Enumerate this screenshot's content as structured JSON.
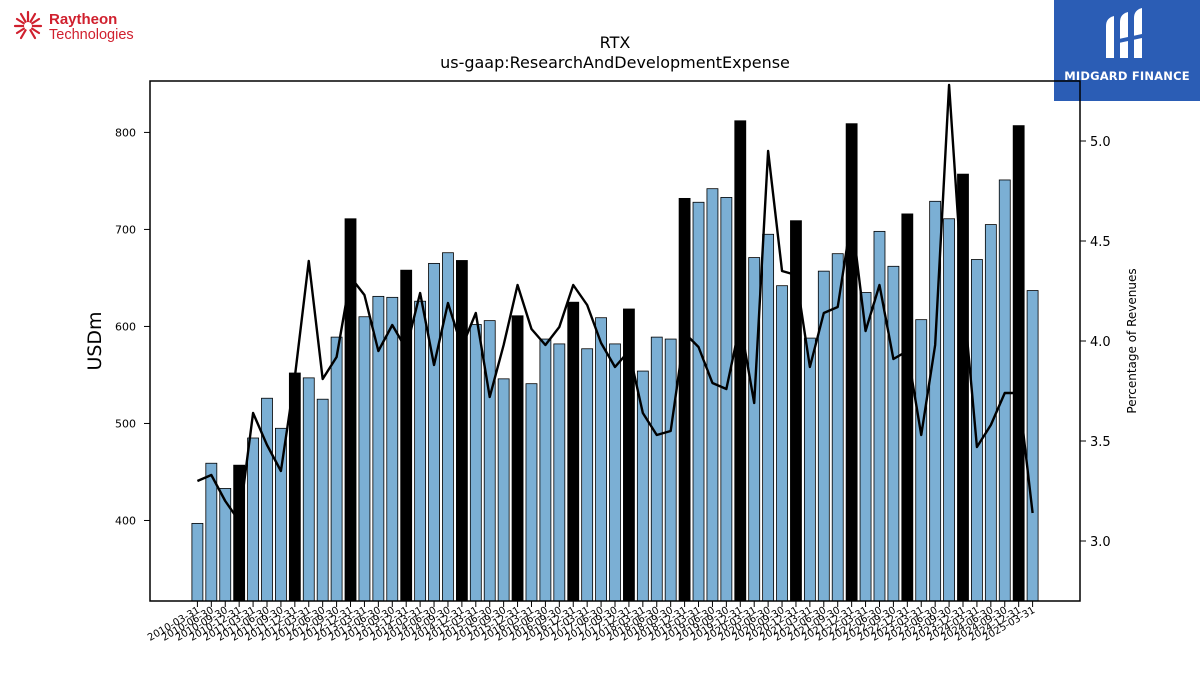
{
  "logos": {
    "left_line1": "Raytheon",
    "left_line2": "Technologies",
    "right_text": "MIDGARD FINANCE",
    "left_color": "#d0202e",
    "right_bg": "#2b5db5"
  },
  "chart_data": {
    "type": "bar",
    "title": "RTX",
    "subtitle": "us-gaap:ResearchAndDevelopmentExpense",
    "ylabel": "USDm",
    "y2label": "Percentage of Revenues",
    "ylim": [
      317,
      853
    ],
    "y2lim": [
      2.7,
      5.3
    ],
    "yticks": [
      400,
      500,
      600,
      700,
      800
    ],
    "y2ticks": [
      3.0,
      3.5,
      4.0,
      4.5,
      5.0
    ],
    "bar_color": "#7bafd4",
    "highlight_color": "#000000",
    "line_color": "#000000",
    "categories": [
      "2010-03-31",
      "2010-06-30",
      "2010-09-30",
      "2010-12-31",
      "2011-03-31",
      "2011-06-30",
      "2011-09-30",
      "2011-12-31",
      "2012-03-31",
      "2012-06-30",
      "2012-09-30",
      "2012-12-31",
      "2013-03-31",
      "2013-06-30",
      "2013-09-30",
      "2013-12-31",
      "2014-03-31",
      "2014-06-30",
      "2014-09-30",
      "2014-12-31",
      "2015-03-31",
      "2015-06-30",
      "2015-09-30",
      "2015-12-31",
      "2016-03-31",
      "2016-06-30",
      "2016-09-30",
      "2016-12-31",
      "2017-03-31",
      "2017-06-30",
      "2017-09-30",
      "2017-12-31",
      "2018-03-31",
      "2018-06-30",
      "2018-09-30",
      "2018-12-31",
      "2019-03-31",
      "2019-06-30",
      "2019-09-30",
      "2019-12-31",
      "2020-03-31",
      "2020-06-30",
      "2020-09-30",
      "2020-12-31",
      "2021-03-31",
      "2021-06-30",
      "2021-09-30",
      "2021-12-31",
      "2022-03-31",
      "2022-06-30",
      "2022-09-30",
      "2022-12-31",
      "2023-03-31",
      "2023-06-30",
      "2023-09-30",
      "2023-12-31",
      "2024-03-31",
      "2024-06-30",
      "2024-09-30",
      "2024-12-31",
      "2025-03-31"
    ],
    "tick_labels": [
      "2010-03-31",
      "2010-06-30",
      "2010-09-30",
      "2010-12-31",
      "2011-03-31",
      "2011-06-30",
      "2011-09-30",
      "2011-12-31",
      "2012-03-31",
      "2012-06-30",
      "2012-09-30",
      "2012-12-31",
      "2013-03-31",
      "2013-06-30",
      "2013-09-30",
      "2013-12-31",
      "2014-03-31",
      "2014-06-30",
      "2014-09-30",
      "2014-12-31",
      "2015-03-31",
      "2015-06-30",
      "2015-09-30",
      "2015-12-31",
      "2016-03-31",
      "2016-06-30",
      "2016-09-30",
      "2016-12-31",
      "2017-03-31",
      "2017-06-30",
      "2017-09-30",
      "2017-12-31",
      "2018-03-31",
      "2018-06-30",
      "2018-09-30",
      "2018-12-31",
      "2019-03-31",
      "2019-06-30",
      "2019-09-30",
      "2019-12-31",
      "2020-03-31",
      "2020-06-30",
      "2020-09-30",
      "2020-12-31",
      "2021-03-31",
      "2021-06-30",
      "2021-09-30",
      "2021-12-31",
      "2022-03-31",
      "2022-06-30",
      "2022-09-30",
      "2022-12-31",
      "2023-03-31",
      "2023-06-30",
      "2023-09-30",
      "2023-12-31",
      "2024-03-31",
      "2024-06-30",
      "2024-09-30",
      "2024-12-31",
      "2025-03-31"
    ],
    "values": [
      397,
      459,
      433,
      457,
      485,
      526,
      495,
      552,
      547,
      525,
      589,
      711,
      610,
      631,
      630,
      658,
      626,
      665,
      676,
      668,
      602,
      606,
      546,
      611,
      541,
      587,
      582,
      625,
      577,
      609,
      582,
      618,
      554,
      589,
      587,
      732,
      728,
      742,
      733,
      812,
      671,
      695,
      642,
      709,
      588,
      657,
      675,
      809,
      635,
      698,
      662,
      716,
      607,
      729,
      711,
      757,
      669,
      705,
      751,
      807,
      637
    ],
    "highlight": [
      false,
      false,
      false,
      true,
      false,
      false,
      false,
      true,
      false,
      false,
      false,
      true,
      false,
      false,
      false,
      true,
      false,
      false,
      false,
      true,
      false,
      false,
      false,
      true,
      false,
      false,
      false,
      true,
      false,
      false,
      false,
      true,
      false,
      false,
      false,
      true,
      false,
      false,
      false,
      true,
      false,
      false,
      false,
      true,
      false,
      false,
      false,
      true,
      false,
      false,
      false,
      true,
      false,
      false,
      false,
      true,
      false,
      false,
      false,
      true,
      false
    ],
    "pct_revenues": [
      3.3,
      3.33,
      3.2,
      3.1,
      3.64,
      3.48,
      3.35,
      3.82,
      4.4,
      3.81,
      3.92,
      4.32,
      4.23,
      3.95,
      4.08,
      3.96,
      4.24,
      3.88,
      4.19,
      3.97,
      4.14,
      3.72,
      3.98,
      4.28,
      4.06,
      3.98,
      4.07,
      4.28,
      4.18,
      3.99,
      3.87,
      3.95,
      3.64,
      3.53,
      3.55,
      4.04,
      3.97,
      3.79,
      3.76,
      4.09,
      3.69,
      4.95,
      4.35,
      4.33,
      3.87,
      4.14,
      4.17,
      4.62,
      4.05,
      4.28,
      3.91,
      3.95,
      3.53,
      3.98,
      5.28,
      4.24,
      3.47,
      3.58,
      3.74,
      3.74,
      3.14
    ]
  }
}
